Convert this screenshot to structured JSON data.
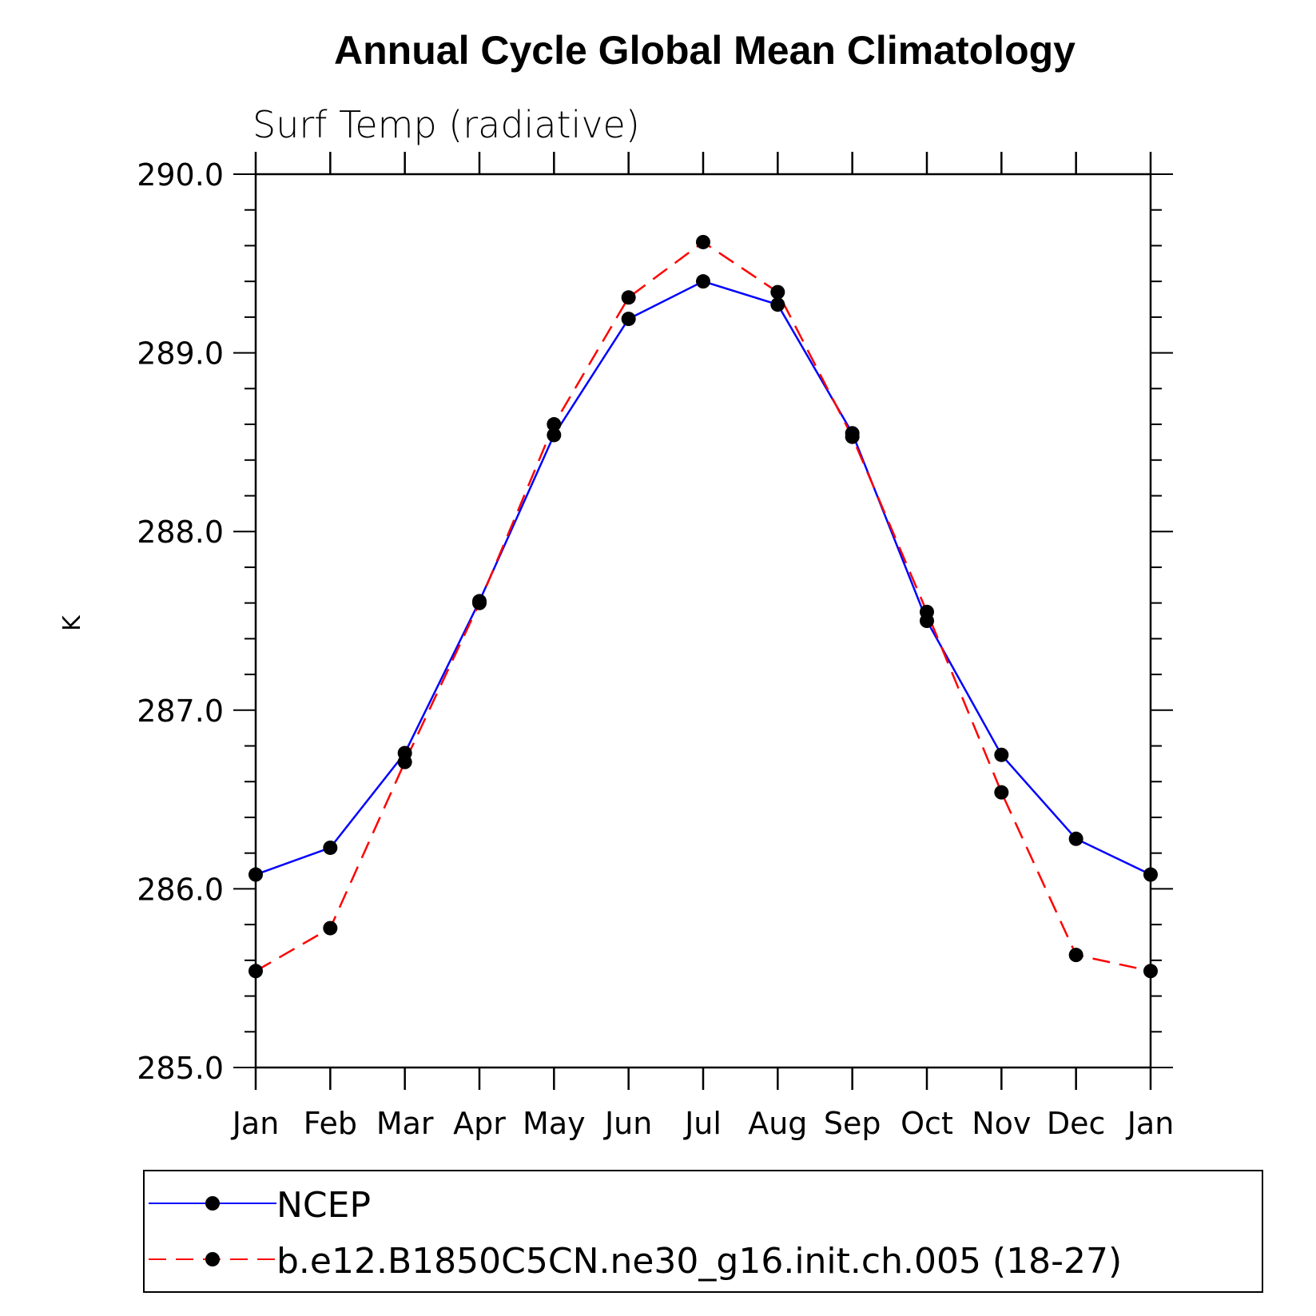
{
  "chart_data": {
    "type": "line",
    "title": "Annual Cycle Global Mean Climatology",
    "subtitle": "Surf Temp (radiative)",
    "xlabel": "",
    "ylabel": "K",
    "categories": [
      "Jan",
      "Feb",
      "Mar",
      "Apr",
      "May",
      "Jun",
      "Jul",
      "Aug",
      "Sep",
      "Oct",
      "Nov",
      "Dec",
      "Jan"
    ],
    "ylim": [
      285.0,
      290.0
    ],
    "yticks": [
      "285.0",
      "286.0",
      "287.0",
      "288.0",
      "289.0",
      "290.0"
    ],
    "series": [
      {
        "name": "NCEP",
        "color": "#0000ff",
        "dash": "solid",
        "values": [
          286.08,
          286.23,
          286.76,
          287.61,
          288.54,
          289.19,
          289.4,
          289.27,
          288.55,
          287.5,
          286.75,
          286.28,
          286.08
        ]
      },
      {
        "name": "b.e12.B1850C5CN.ne30_g16.init.ch.005 (18-27)",
        "color": "#ff0000",
        "dash": "dashed",
        "values": [
          285.54,
          285.78,
          286.71,
          287.6,
          288.6,
          289.31,
          289.62,
          289.34,
          288.53,
          287.55,
          286.54,
          285.63,
          285.54
        ]
      }
    ],
    "legend_position": "bottom"
  }
}
